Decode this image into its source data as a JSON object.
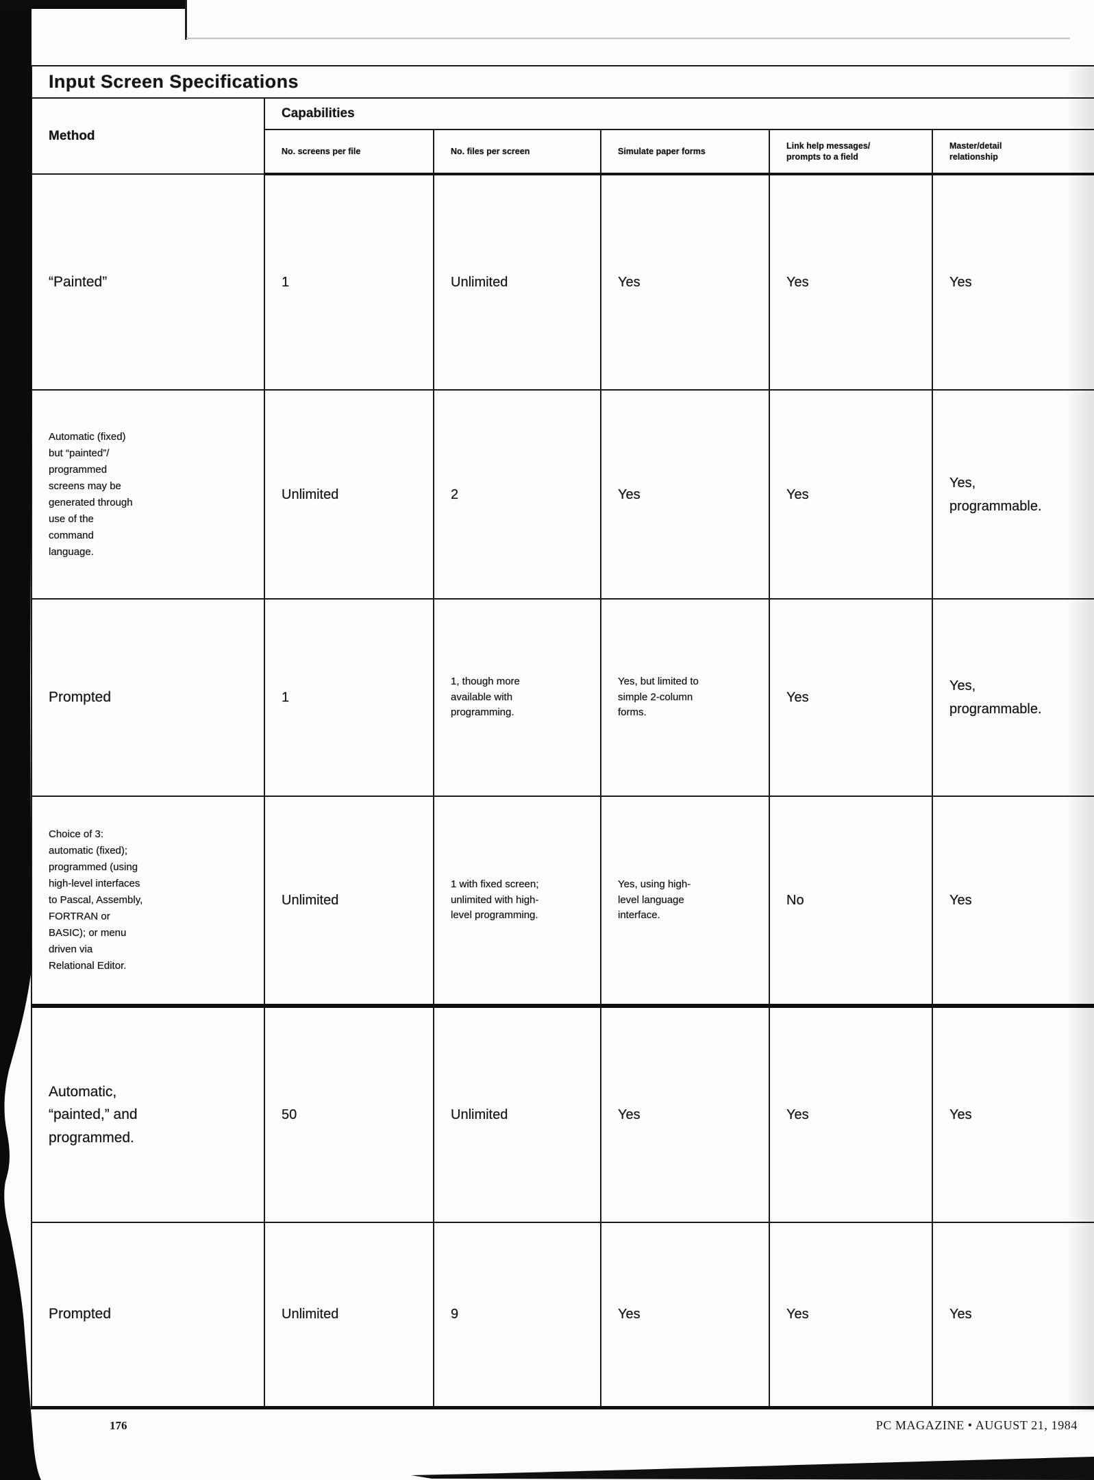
{
  "colors": {
    "ink": "#161616",
    "paper": "#fcfcfa",
    "scan_black": "#0b0b0b"
  },
  "title": "Input Screen Specifications",
  "table": {
    "method_header": "Method",
    "capabilities_header": "Capabilities",
    "columns": [
      "No. screens per file",
      "No. files per screen",
      "Simulate paper forms",
      "Link help messages/\nprompts to a field",
      "Master/detail\nrelationship"
    ],
    "rows": [
      {
        "method": "“Painted”",
        "method_small": false,
        "cells": [
          "1",
          "Unlimited",
          "Yes",
          "Yes",
          "Yes"
        ]
      },
      {
        "method": "Automatic (fixed)\nbut “painted”/\nprogrammed\nscreens may be\ngenerated through\nuse of the\ncommand\nlanguage.",
        "method_small": true,
        "cells": [
          "Unlimited",
          "2",
          "Yes",
          "Yes",
          "Yes,\nprogrammable."
        ]
      },
      {
        "method": "Prompted",
        "method_small": false,
        "cells": [
          "1",
          "1, though more\navailable with\nprogramming.",
          "Yes, but limited to\nsimple 2-column\nforms.",
          "Yes",
          "Yes,\nprogrammable."
        ]
      },
      {
        "method": "Choice of 3:\nautomatic (fixed);\nprogrammed (using\nhigh-level interfaces\nto Pascal, Assembly,\nFORTRAN or\nBASIC); or menu\ndriven via\nRelational Editor.",
        "method_small": true,
        "cells": [
          "Unlimited",
          "1 with fixed screen;\nunlimited with high-\nlevel programming.",
          "Yes, using high-\nlevel language\ninterface.",
          "No",
          "Yes"
        ]
      },
      {
        "method": "Automatic,\n“painted,” and\nprogrammed.",
        "method_small": false,
        "cells": [
          "50",
          "Unlimited",
          "Yes",
          "Yes",
          "Yes"
        ]
      },
      {
        "method": "Prompted",
        "method_small": false,
        "cells": [
          "Unlimited",
          "9",
          "Yes",
          "Yes",
          "Yes"
        ]
      }
    ]
  },
  "footer": {
    "page_number": "176",
    "magazine_line": "PC MAGAZINE • AUGUST 21, 1984"
  }
}
